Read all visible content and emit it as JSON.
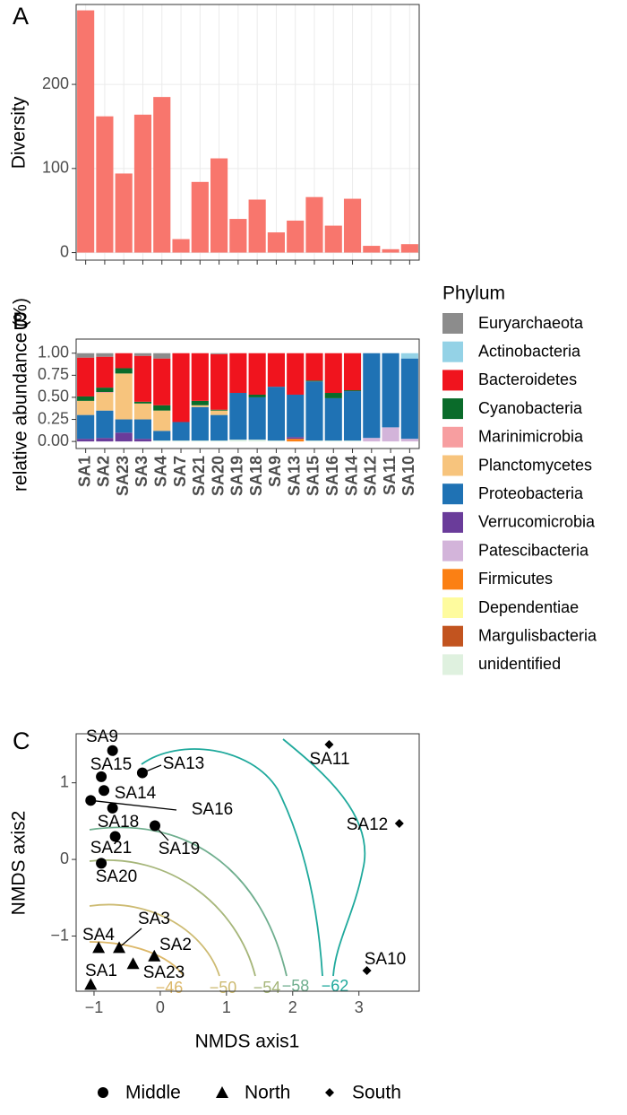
{
  "chart_data": [
    {
      "type": "bar",
      "panel": "A",
      "y_label": "Diversity",
      "categories": [
        null,
        null,
        null,
        null,
        null,
        null,
        null,
        null,
        null,
        null,
        null,
        null,
        null,
        null,
        null,
        null,
        null,
        null
      ],
      "values": [
        288,
        162,
        94,
        164,
        185,
        16,
        84,
        112,
        40,
        63,
        24,
        38,
        66,
        32,
        64,
        8,
        4,
        10
      ],
      "color": "#f8766d",
      "ylim": [
        -9,
        295
      ],
      "yticks": [
        0,
        100,
        200
      ],
      "grid": true
    },
    {
      "type": "stacked_bar",
      "panel": "B",
      "y_label": "relative abundance (%)",
      "legend_title": "Phylum",
      "categories": [
        "SA1",
        "SA2",
        "SA23",
        "SA3",
        "SA4",
        "SA7",
        "SA21",
        "SA20",
        "SA19",
        "SA18",
        "SA9",
        "SA13",
        "SA15",
        "SA16",
        "SA14",
        "SA12",
        "SA11",
        "SA10"
      ],
      "series": [
        {
          "name": "Euryarchaeota",
          "color": "#8c8c8c",
          "values": [
            0.05,
            0.04,
            0,
            0.03,
            0.06,
            0,
            0,
            0.01,
            0,
            0,
            0,
            0,
            0,
            0,
            0,
            0,
            0,
            0
          ]
        },
        {
          "name": "Actinobacteria",
          "color": "#94d2e6",
          "values": [
            0,
            0,
            0,
            0,
            0,
            0,
            0,
            0,
            0,
            0,
            0,
            0,
            0,
            0,
            0,
            0,
            0,
            0.06
          ]
        },
        {
          "name": "Bacteroidetes",
          "color": "#f0141e",
          "values": [
            0.44,
            0.35,
            0.17,
            0.52,
            0.53,
            0.78,
            0.54,
            0.63,
            0.45,
            0.47,
            0.38,
            0.47,
            0.31,
            0.45,
            0.42,
            0,
            0,
            0
          ]
        },
        {
          "name": "Cyanobacteria",
          "color": "#0a6b2a",
          "values": [
            0.05,
            0.05,
            0.06,
            0.02,
            0.06,
            0,
            0.05,
            0.01,
            0,
            0.03,
            0,
            0,
            0.01,
            0.06,
            0.01,
            0,
            0,
            0
          ]
        },
        {
          "name": "Marinimicrobia",
          "color": "#f79ea0",
          "values": [
            0,
            0.01,
            0,
            0,
            0,
            0,
            0,
            0,
            0,
            0,
            0,
            0,
            0,
            0,
            0,
            0,
            0,
            0
          ]
        },
        {
          "name": "Planctomycetes",
          "color": "#f7c47d",
          "values": [
            0.16,
            0.2,
            0.52,
            0.18,
            0.23,
            0,
            0.02,
            0.05,
            0,
            0,
            0,
            0,
            0,
            0,
            0,
            0,
            0,
            0
          ]
        },
        {
          "name": "Proteobacteria",
          "color": "#1f72b4",
          "values": [
            0.27,
            0.31,
            0.15,
            0.22,
            0.11,
            0.21,
            0.38,
            0.29,
            0.53,
            0.48,
            0.61,
            0.48,
            0.67,
            0.48,
            0.56,
            0.96,
            0.84,
            0.91
          ]
        },
        {
          "name": "Verrucomicrobia",
          "color": "#6a3c9a",
          "values": [
            0.03,
            0.04,
            0.1,
            0.03,
            0,
            0,
            0,
            0,
            0,
            0,
            0,
            0.02,
            0,
            0,
            0,
            0,
            0,
            0
          ]
        },
        {
          "name": "Patescibacteria",
          "color": "#d3b4da",
          "values": [
            0,
            0,
            0,
            0,
            0,
            0,
            0,
            0,
            0,
            0,
            0,
            0,
            0,
            0,
            0,
            0.04,
            0.16,
            0.03
          ]
        },
        {
          "name": "Firmicutes",
          "color": "#fb8014",
          "values": [
            0,
            0,
            0,
            0,
            0,
            0,
            0,
            0,
            0,
            0,
            0,
            0.03,
            0,
            0,
            0,
            0,
            0,
            0
          ]
        },
        {
          "name": "Dependentiae",
          "color": "#fefb9e",
          "values": [
            0,
            0,
            0,
            0,
            0,
            0,
            0,
            0,
            0,
            0,
            0,
            0,
            0,
            0,
            0,
            0,
            0,
            0
          ]
        },
        {
          "name": "Margulisbacteria",
          "color": "#c2541f",
          "values": [
            0,
            0,
            0,
            0,
            0,
            0,
            0,
            0,
            0,
            0,
            0,
            0,
            0,
            0,
            0,
            0,
            0,
            0
          ]
        },
        {
          "name": "unidentified",
          "color": "#dff1df",
          "values": [
            0,
            0,
            0,
            0,
            0.01,
            0.01,
            0.01,
            0.01,
            0.02,
            0.02,
            0.01,
            0,
            0.01,
            0.01,
            0.01,
            0,
            0,
            0
          ]
        }
      ],
      "ylim": [
        -0.08,
        1.16
      ],
      "yticks": [
        {
          "value": 0,
          "label": "0.00"
        },
        {
          "value": 0.25,
          "label": "0.25"
        },
        {
          "value": 0.5,
          "label": "0.50"
        },
        {
          "value": 0.75,
          "label": "0.75"
        },
        {
          "value": 1,
          "label": "1.00"
        }
      ]
    },
    {
      "type": "scatter",
      "panel": "C",
      "x_label": "NMDS axis1",
      "y_label": "NMDS axis2",
      "xlim": [
        -1.27,
        3.91
      ],
      "ylim": [
        -1.72,
        1.64
      ],
      "xticks": [
        {
          "value": -1,
          "label": "−1"
        },
        0,
        1,
        2,
        3
      ],
      "yticks": [
        {
          "value": -1,
          "label": "−1"
        },
        0,
        1
      ],
      "series": [
        {
          "name": "Middle",
          "shape": "circle",
          "labels": [
            "SA9",
            "SA15",
            "SA13",
            "SA14",
            "SA16",
            "SA18",
            "SA19",
            "SA21",
            "SA20"
          ],
          "x": [
            -0.72,
            -0.89,
            -0.27,
            -0.85,
            -1.05,
            -0.72,
            -0.08,
            -0.68,
            -0.89
          ],
          "values": [
            1.42,
            1.08,
            1.13,
            0.9,
            0.77,
            0.67,
            0.44,
            0.3,
            -0.05
          ]
        },
        {
          "name": "North",
          "shape": "triangle",
          "labels": [
            "SA4",
            "SA3",
            "SA2",
            "SA23",
            "SA1"
          ],
          "x": [
            -0.93,
            -0.62,
            -0.09,
            -0.41,
            -1.05
          ],
          "values": [
            -1.15,
            -1.15,
            -1.26,
            -1.36,
            -1.63
          ]
        },
        {
          "name": "South",
          "shape": "diamond",
          "labels": [
            "SA11",
            "SA12",
            "SA10"
          ],
          "x": [
            2.55,
            3.61,
            3.12
          ],
          "values": [
            1.5,
            0.47,
            -1.45
          ]
        }
      ],
      "contours": [
        {
          "value": -46,
          "label": "−46",
          "color": "#dcb86a"
        },
        {
          "value": -50,
          "label": "−50",
          "color": "#cdbb72"
        },
        {
          "value": -54,
          "label": "−54",
          "color": "#a6b67a"
        },
        {
          "value": -58,
          "label": "−58",
          "color": "#6fae8e"
        },
        {
          "value": -62,
          "label": "−62",
          "color": "#1fa99c"
        }
      ]
    }
  ]
}
